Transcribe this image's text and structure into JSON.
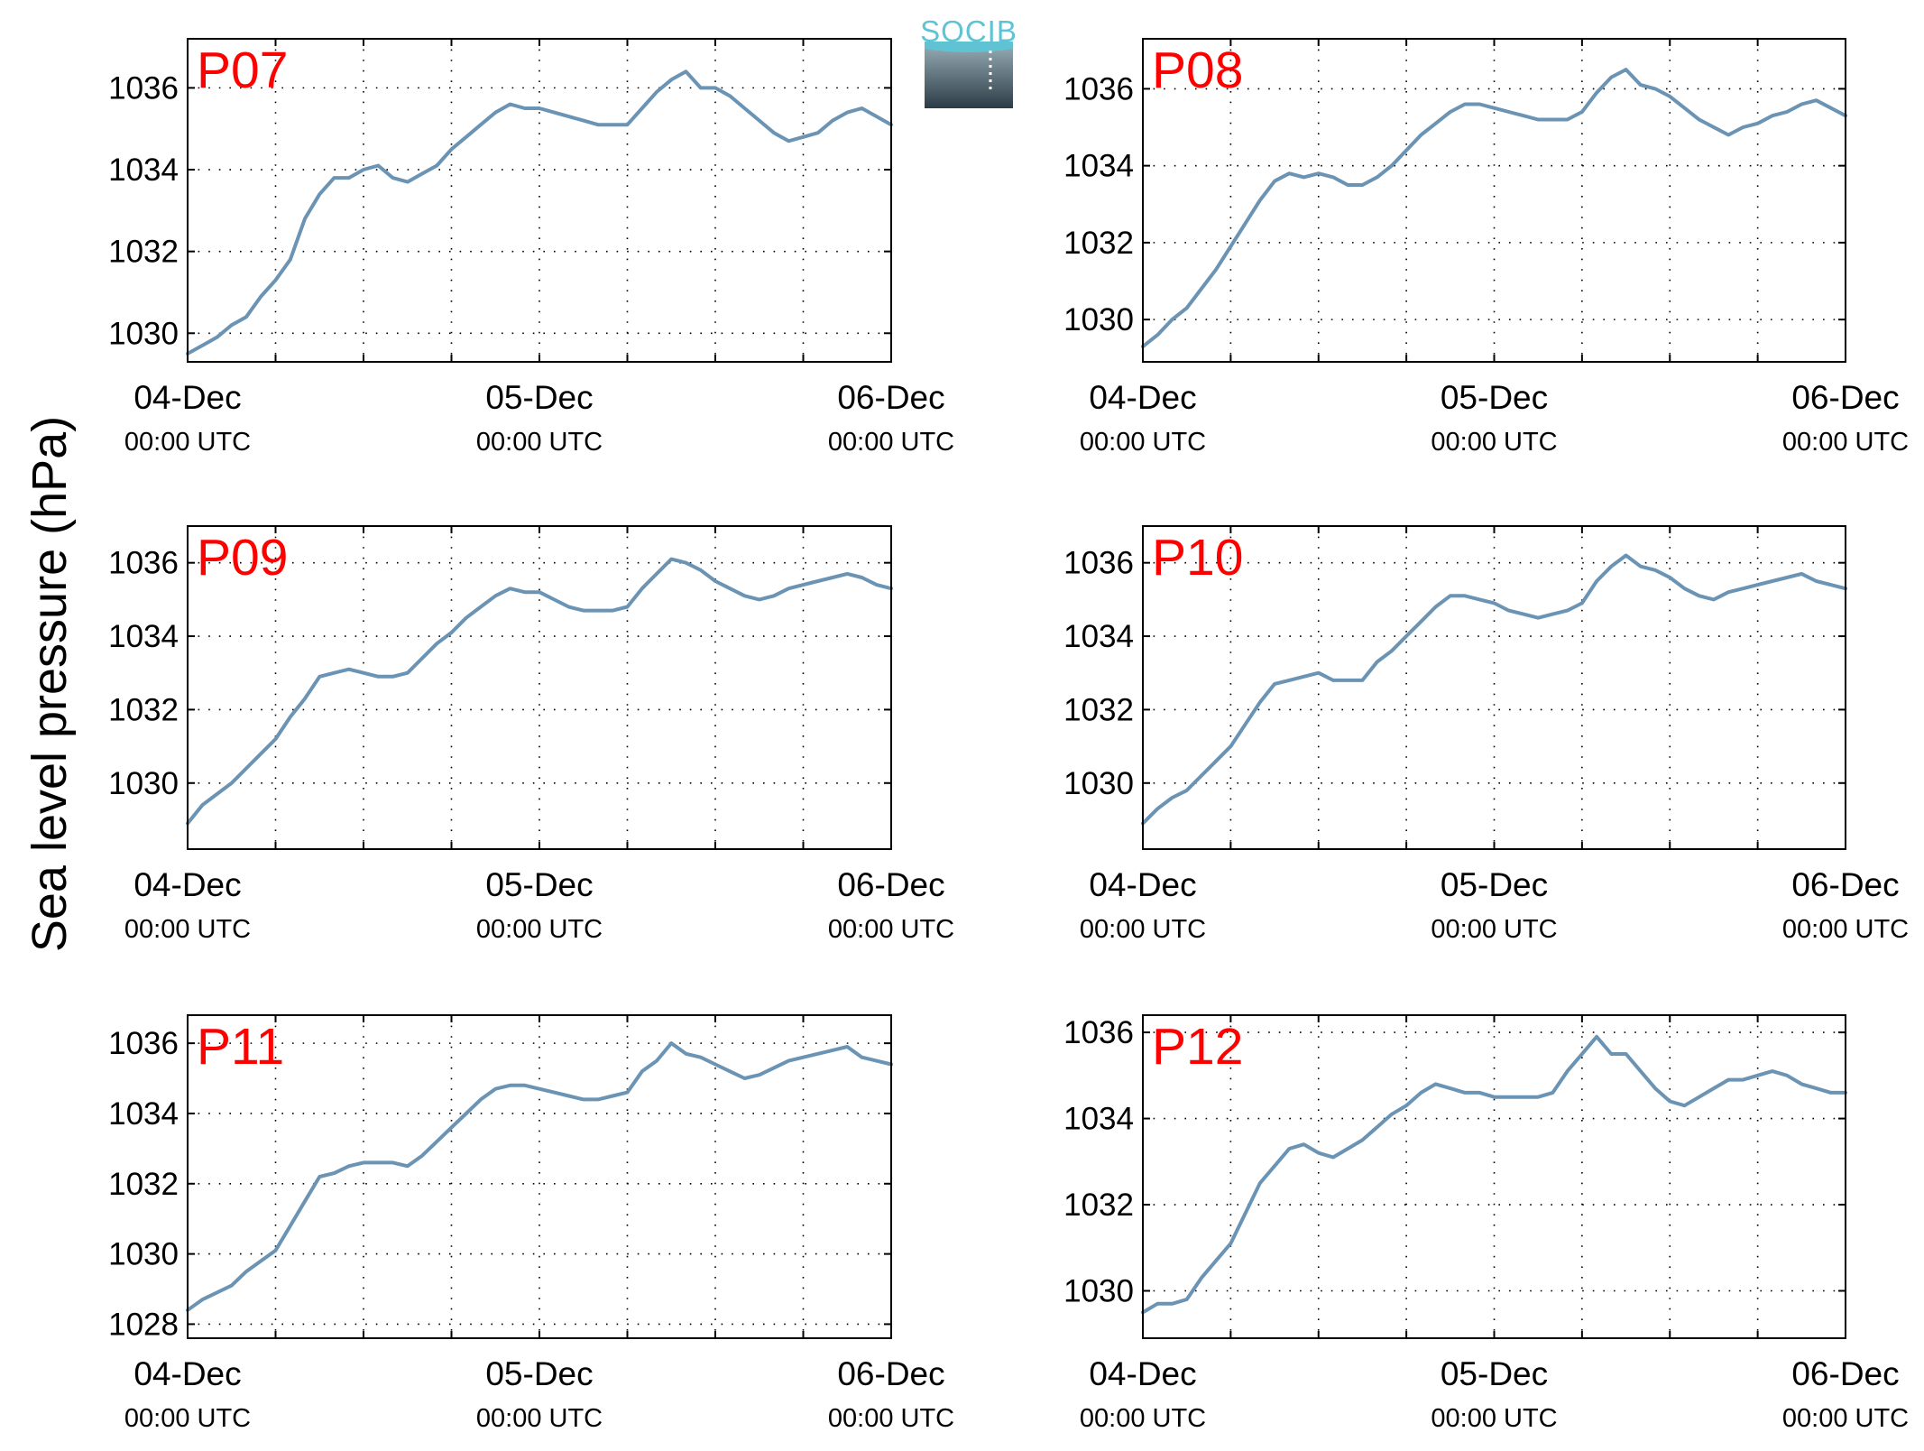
{
  "figure": {
    "ylabel": "Sea level pressure (hPa)",
    "logo_text": "SOCIB",
    "line_color": "#6a93b4",
    "label_color": "#ff0000"
  },
  "chart_data": [
    {
      "type": "line",
      "title": "P07",
      "x_ticks": [
        {
          "date": "04-Dec",
          "time": "00:00 UTC"
        },
        {
          "date": "05-Dec",
          "time": "00:00 UTC"
        },
        {
          "date": "06-Dec",
          "time": "00:00 UTC"
        }
      ],
      "xlim_hours": [
        0,
        48
      ],
      "y_ticks": [
        1030,
        1032,
        1034,
        1036
      ],
      "ylim": [
        1029.3,
        1037.2
      ],
      "grid": true,
      "series": [
        {
          "x_hours": [
            0,
            1,
            2,
            3,
            4,
            5,
            6,
            7,
            8,
            9,
            10,
            11,
            12,
            13,
            14,
            15,
            16,
            17,
            18,
            19,
            20,
            21,
            22,
            23,
            24,
            25,
            26,
            27,
            28,
            29,
            30,
            31,
            32,
            33,
            34,
            35,
            36,
            37,
            38,
            39,
            40,
            41,
            42,
            43,
            44,
            45,
            46,
            47,
            48
          ],
          "values": [
            1029.5,
            1029.7,
            1029.9,
            1030.2,
            1030.4,
            1030.9,
            1031.3,
            1031.8,
            1032.8,
            1033.4,
            1033.8,
            1033.8,
            1034.0,
            1034.1,
            1033.8,
            1033.7,
            1033.9,
            1034.1,
            1034.5,
            1034.8,
            1035.1,
            1035.4,
            1035.6,
            1035.5,
            1035.5,
            1035.4,
            1035.3,
            1035.2,
            1035.1,
            1035.1,
            1035.1,
            1035.5,
            1035.9,
            1036.2,
            1036.4,
            1036.0,
            1036.0,
            1035.8,
            1035.5,
            1035.2,
            1034.9,
            1034.7,
            1034.8,
            1034.9,
            1035.2,
            1035.4,
            1035.5,
            1035.3,
            1035.1
          ]
        }
      ]
    },
    {
      "type": "line",
      "title": "P08",
      "x_ticks": [
        {
          "date": "04-Dec",
          "time": "00:00 UTC"
        },
        {
          "date": "05-Dec",
          "time": "00:00 UTC"
        },
        {
          "date": "06-Dec",
          "time": "00:00 UTC"
        }
      ],
      "xlim_hours": [
        0,
        48
      ],
      "y_ticks": [
        1030,
        1032,
        1034,
        1036
      ],
      "ylim": [
        1028.9,
        1037.3
      ],
      "grid": true,
      "series": [
        {
          "x_hours": [
            0,
            1,
            2,
            3,
            4,
            5,
            6,
            7,
            8,
            9,
            10,
            11,
            12,
            13,
            14,
            15,
            16,
            17,
            18,
            19,
            20,
            21,
            22,
            23,
            24,
            25,
            26,
            27,
            28,
            29,
            30,
            31,
            32,
            33,
            34,
            35,
            36,
            37,
            38,
            39,
            40,
            41,
            42,
            43,
            44,
            45,
            46,
            47,
            48
          ],
          "values": [
            1029.3,
            1029.6,
            1030.0,
            1030.3,
            1030.8,
            1031.3,
            1031.9,
            1032.5,
            1033.1,
            1033.6,
            1033.8,
            1033.7,
            1033.8,
            1033.7,
            1033.5,
            1033.5,
            1033.7,
            1034.0,
            1034.4,
            1034.8,
            1035.1,
            1035.4,
            1035.6,
            1035.6,
            1035.5,
            1035.4,
            1035.3,
            1035.2,
            1035.2,
            1035.2,
            1035.4,
            1035.9,
            1036.3,
            1036.5,
            1036.1,
            1036.0,
            1035.8,
            1035.5,
            1035.2,
            1035.0,
            1034.8,
            1035.0,
            1035.1,
            1035.3,
            1035.4,
            1035.6,
            1035.7,
            1035.5,
            1035.3
          ]
        }
      ]
    },
    {
      "type": "line",
      "title": "P09",
      "x_ticks": [
        {
          "date": "04-Dec",
          "time": "00:00 UTC"
        },
        {
          "date": "05-Dec",
          "time": "00:00 UTC"
        },
        {
          "date": "06-Dec",
          "time": "00:00 UTC"
        }
      ],
      "xlim_hours": [
        0,
        48
      ],
      "y_ticks": [
        1030,
        1032,
        1034,
        1036
      ],
      "ylim": [
        1028.2,
        1037.0
      ],
      "grid": true,
      "series": [
        {
          "x_hours": [
            0,
            1,
            2,
            3,
            4,
            5,
            6,
            7,
            8,
            9,
            10,
            11,
            12,
            13,
            14,
            15,
            16,
            17,
            18,
            19,
            20,
            21,
            22,
            23,
            24,
            25,
            26,
            27,
            28,
            29,
            30,
            31,
            32,
            33,
            34,
            35,
            36,
            37,
            38,
            39,
            40,
            41,
            42,
            43,
            44,
            45,
            46,
            47,
            48
          ],
          "values": [
            1028.9,
            1029.4,
            1029.7,
            1030.0,
            1030.4,
            1030.8,
            1031.2,
            1031.8,
            1032.3,
            1032.9,
            1033.0,
            1033.1,
            1033.0,
            1032.9,
            1032.9,
            1033.0,
            1033.4,
            1033.8,
            1034.1,
            1034.5,
            1034.8,
            1035.1,
            1035.3,
            1035.2,
            1035.2,
            1035.0,
            1034.8,
            1034.7,
            1034.7,
            1034.7,
            1034.8,
            1035.3,
            1035.7,
            1036.1,
            1036.0,
            1035.8,
            1035.5,
            1035.3,
            1035.1,
            1035.0,
            1035.1,
            1035.3,
            1035.4,
            1035.5,
            1035.6,
            1035.7,
            1035.6,
            1035.4,
            1035.3
          ]
        }
      ]
    },
    {
      "type": "line",
      "title": "P10",
      "x_ticks": [
        {
          "date": "04-Dec",
          "time": "00:00 UTC"
        },
        {
          "date": "05-Dec",
          "time": "00:00 UTC"
        },
        {
          "date": "06-Dec",
          "time": "00:00 UTC"
        }
      ],
      "xlim_hours": [
        0,
        48
      ],
      "y_ticks": [
        1030,
        1032,
        1034,
        1036
      ],
      "ylim": [
        1028.2,
        1037.0
      ],
      "grid": true,
      "series": [
        {
          "x_hours": [
            0,
            1,
            2,
            3,
            4,
            5,
            6,
            7,
            8,
            9,
            10,
            11,
            12,
            13,
            14,
            15,
            16,
            17,
            18,
            19,
            20,
            21,
            22,
            23,
            24,
            25,
            26,
            27,
            28,
            29,
            30,
            31,
            32,
            33,
            34,
            35,
            36,
            37,
            38,
            39,
            40,
            41,
            42,
            43,
            44,
            45,
            46,
            47,
            48
          ],
          "values": [
            1028.9,
            1029.3,
            1029.6,
            1029.8,
            1030.2,
            1030.6,
            1031.0,
            1031.6,
            1032.2,
            1032.7,
            1032.8,
            1032.9,
            1033.0,
            1032.8,
            1032.8,
            1032.8,
            1033.3,
            1033.6,
            1034.0,
            1034.4,
            1034.8,
            1035.1,
            1035.1,
            1035.0,
            1034.9,
            1034.7,
            1034.6,
            1034.5,
            1034.6,
            1034.7,
            1034.9,
            1035.5,
            1035.9,
            1036.2,
            1035.9,
            1035.8,
            1035.6,
            1035.3,
            1035.1,
            1035.0,
            1035.2,
            1035.3,
            1035.4,
            1035.5,
            1035.6,
            1035.7,
            1035.5,
            1035.4,
            1035.3
          ]
        }
      ]
    },
    {
      "type": "line",
      "title": "P11",
      "x_ticks": [
        {
          "date": "04-Dec",
          "time": "00:00 UTC"
        },
        {
          "date": "05-Dec",
          "time": "00:00 UTC"
        },
        {
          "date": "06-Dec",
          "time": "00:00 UTC"
        }
      ],
      "xlim_hours": [
        0,
        48
      ],
      "y_ticks": [
        1028,
        1030,
        1032,
        1034,
        1036
      ],
      "ylim": [
        1027.6,
        1036.8
      ],
      "grid": true,
      "series": [
        {
          "x_hours": [
            0,
            1,
            2,
            3,
            4,
            5,
            6,
            7,
            8,
            9,
            10,
            11,
            12,
            13,
            14,
            15,
            16,
            17,
            18,
            19,
            20,
            21,
            22,
            23,
            24,
            25,
            26,
            27,
            28,
            29,
            30,
            31,
            32,
            33,
            34,
            35,
            36,
            37,
            38,
            39,
            40,
            41,
            42,
            43,
            44,
            45,
            46,
            47,
            48
          ],
          "values": [
            1028.4,
            1028.7,
            1028.9,
            1029.1,
            1029.5,
            1029.8,
            1030.1,
            1030.8,
            1031.5,
            1032.2,
            1032.3,
            1032.5,
            1032.6,
            1032.6,
            1032.6,
            1032.5,
            1032.8,
            1033.2,
            1033.6,
            1034.0,
            1034.4,
            1034.7,
            1034.8,
            1034.8,
            1034.7,
            1034.6,
            1034.5,
            1034.4,
            1034.4,
            1034.5,
            1034.6,
            1035.2,
            1035.5,
            1036.0,
            1035.7,
            1035.6,
            1035.4,
            1035.2,
            1035.0,
            1035.1,
            1035.3,
            1035.5,
            1035.6,
            1035.7,
            1035.8,
            1035.9,
            1035.6,
            1035.5,
            1035.4
          ]
        }
      ]
    },
    {
      "type": "line",
      "title": "P12",
      "x_ticks": [
        {
          "date": "04-Dec",
          "time": "00:00 UTC"
        },
        {
          "date": "05-Dec",
          "time": "00:00 UTC"
        },
        {
          "date": "06-Dec",
          "time": "00:00 UTC"
        }
      ],
      "xlim_hours": [
        0,
        48
      ],
      "y_ticks": [
        1030,
        1032,
        1034,
        1036
      ],
      "ylim": [
        1028.9,
        1036.4
      ],
      "grid": true,
      "series": [
        {
          "x_hours": [
            0,
            1,
            2,
            3,
            4,
            5,
            6,
            7,
            8,
            9,
            10,
            11,
            12,
            13,
            14,
            15,
            16,
            17,
            18,
            19,
            20,
            21,
            22,
            23,
            24,
            25,
            26,
            27,
            28,
            29,
            30,
            31,
            32,
            33,
            34,
            35,
            36,
            37,
            38,
            39,
            40,
            41,
            42,
            43,
            44,
            45,
            46,
            47,
            48
          ],
          "values": [
            1029.5,
            1029.7,
            1029.7,
            1029.8,
            1030.3,
            1030.7,
            1031.1,
            1031.8,
            1032.5,
            1032.9,
            1033.3,
            1033.4,
            1033.2,
            1033.1,
            1033.3,
            1033.5,
            1033.8,
            1034.1,
            1034.3,
            1034.6,
            1034.8,
            1034.7,
            1034.6,
            1034.6,
            1034.5,
            1034.5,
            1034.5,
            1034.5,
            1034.6,
            1035.1,
            1035.5,
            1035.9,
            1035.5,
            1035.5,
            1035.1,
            1034.7,
            1034.4,
            1034.3,
            1034.5,
            1034.7,
            1034.9,
            1034.9,
            1035.0,
            1035.1,
            1035.0,
            1034.8,
            1034.7,
            1034.6,
            1034.6
          ]
        }
      ]
    }
  ]
}
